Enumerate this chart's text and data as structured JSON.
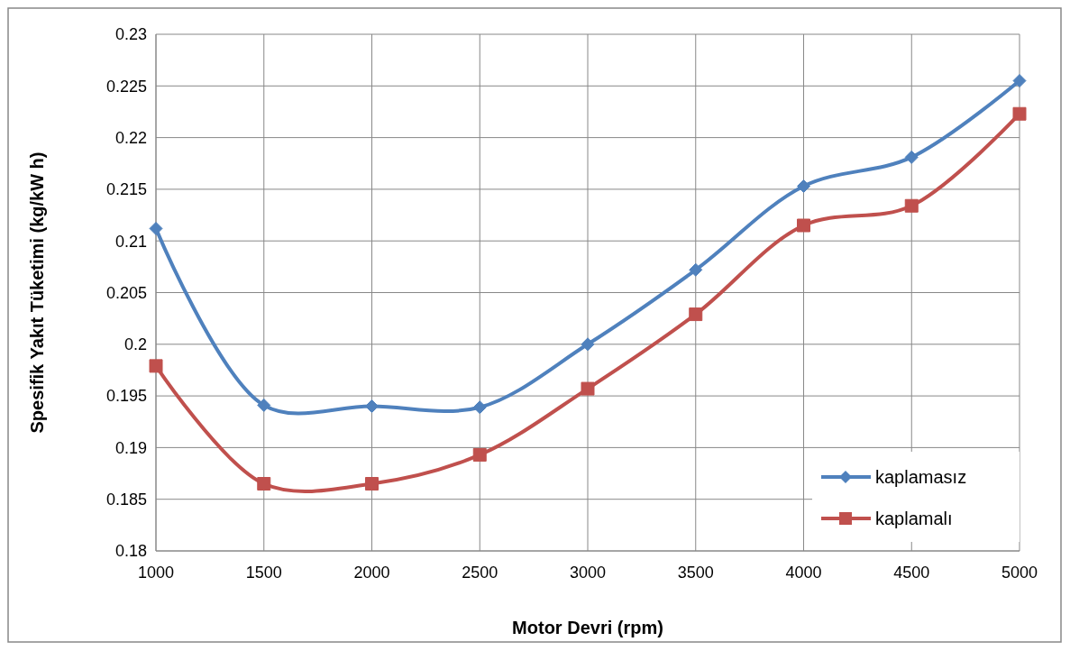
{
  "chart_data": {
    "type": "line",
    "xlabel": "Motor Devri (rpm)",
    "ylabel": "Spesifik Yakıt Tüketimi (kg/kW h)",
    "x": [
      1000,
      1500,
      2000,
      2500,
      3000,
      3500,
      4000,
      4500,
      5000
    ],
    "series": [
      {
        "name": "kaplamasız",
        "color": "#4f81bd",
        "marker": "diamond",
        "values": [
          0.2112,
          0.1941,
          0.194,
          0.1939,
          0.2,
          0.2072,
          0.2153,
          0.2181,
          0.2255
        ]
      },
      {
        "name": "kaplamalı",
        "color": "#c0504d",
        "marker": "square",
        "values": [
          0.1979,
          0.1865,
          0.1865,
          0.1893,
          0.1957,
          0.2029,
          0.2115,
          0.2134,
          0.2223
        ]
      }
    ],
    "xlim": [
      1000,
      5000
    ],
    "xticks": [
      1000,
      1500,
      2000,
      2500,
      3000,
      3500,
      4000,
      4500,
      5000
    ],
    "ylim": [
      0.18,
      0.23
    ],
    "yticks": [
      0.18,
      0.185,
      0.19,
      0.195,
      0.2,
      0.205,
      0.21,
      0.215,
      0.22,
      0.225,
      0.23
    ],
    "grid": true,
    "legend": "bottom right"
  }
}
